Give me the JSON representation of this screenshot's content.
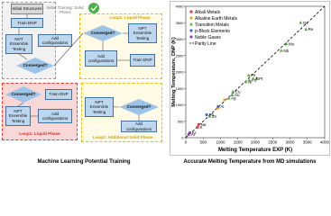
{
  "diagram": {
    "nodes": [
      "Initial Structures",
      "Train DNP",
      "Initial Training: Solid Phase",
      "Add configurations",
      "NVT Ensemble Testing",
      "Converged?",
      "Loop1: Liquid Phase",
      "Converged?",
      "NPT Ensemble Testing",
      "Add configurations",
      "Train DNP",
      "Converged?",
      "NPT Ensemble Testing",
      "Add configurations",
      "Train DNP",
      "Loop1: Liquid Phase",
      "NPT Ensemble Testing",
      "Converged?",
      "Add configurations",
      "Loop2: Additional Solid Phase"
    ],
    "captions": [
      "Machine Learning Potential Training",
      "Accurate Melting Temperature from MD simulations"
    ]
  },
  "chart_data": {
    "type": "scatter",
    "x_label": "Melting Temperature EXP (K)",
    "y_label": "Melting Temperature, DNP (K)",
    "xlim": [
      0,
      4000
    ],
    "ylim": [
      0,
      4000
    ],
    "xticks": [
      0,
      500,
      1000,
      1500,
      2000,
      2500,
      3000,
      3500,
      4000
    ],
    "yticks": [
      0,
      500,
      1000,
      1500,
      2000,
      2500,
      3000,
      3500,
      4000
    ],
    "legend": "upper left",
    "series": [
      {
        "name": "Alkali Metals",
        "color": "#e03a3a",
        "marker": "circle",
        "x": [
          371,
          337
        ],
        "values": [
          400,
          320
        ],
        "labels": [
          "Na",
          "K"
        ]
      },
      {
        "name": "Alkaline Earth Metals",
        "color": "#f0a020",
        "marker": "circle",
        "x": [
          1115,
          923
        ],
        "values": [
          1150,
          900
        ],
        "labels": [
          null,
          null
        ]
      },
      {
        "name": "Transition Metals",
        "color": "#6aa84f",
        "marker": "triangle",
        "x": [
          3306,
          3459,
          2896,
          2750,
          1811,
          1728,
          1828,
          2041,
          1941,
          1358,
          1337,
          1235,
          693
        ],
        "values": [
          3500,
          3300,
          2850,
          2650,
          1900,
          1700,
          1750,
          1800,
          1800,
          1400,
          1300,
          1200,
          650
        ],
        "labels": [
          "Os",
          "Re",
          "Mo",
          "Nb",
          "Fe",
          "Ni",
          "Pd",
          "Pt",
          "Ti",
          "Cu",
          "Au",
          "Ag",
          "Zn"
        ]
      },
      {
        "name": "p-Block Elements",
        "color": "#3d6fc4",
        "marker": "circle",
        "x": [
          933,
          601
        ],
        "values": [
          950,
          700
        ],
        "labels": [
          "Al",
          "Pb"
        ]
      },
      {
        "name": "Noble Gases",
        "color": "#8e44ad",
        "marker": "circle",
        "x": [
          84,
          116
        ],
        "values": [
          100,
          150
        ],
        "labels": [
          "Ar",
          "Kr"
        ]
      }
    ],
    "parity_line": {
      "name": "Parity Line",
      "color": "#000000"
    }
  }
}
